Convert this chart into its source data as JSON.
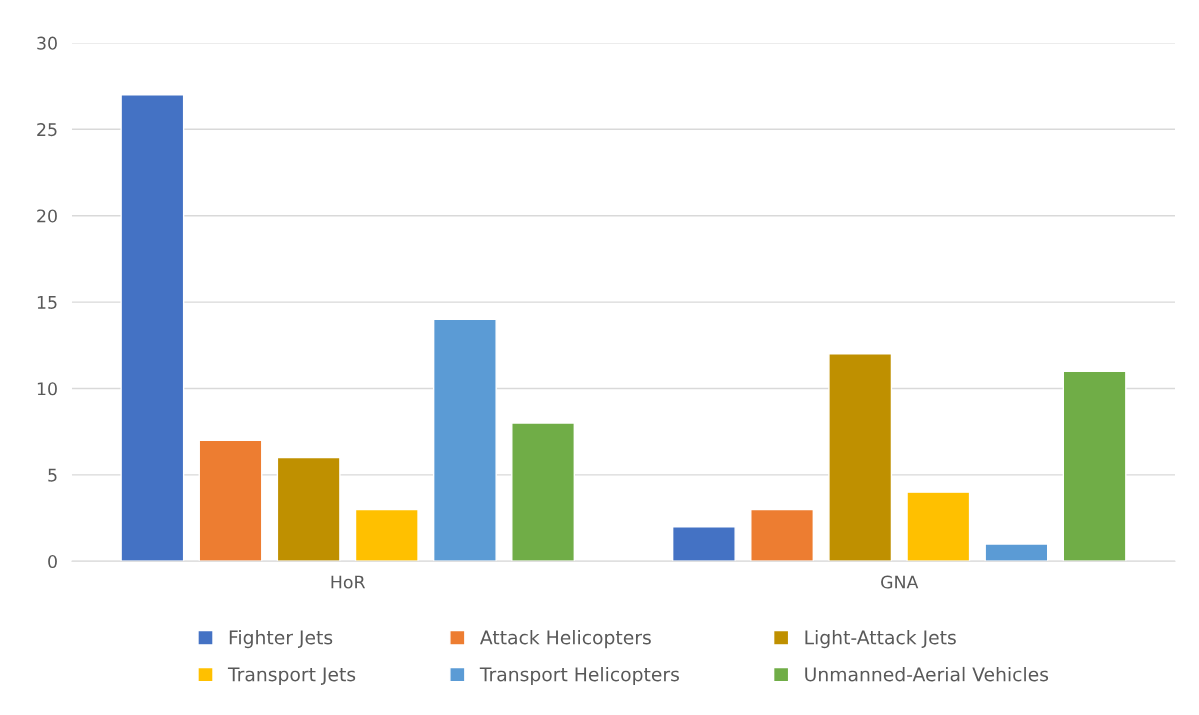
{
  "chart_data": {
    "type": "bar",
    "categories": [
      "HoR",
      "GNA"
    ],
    "series": [
      {
        "name": "Fighter Jets",
        "color": "#4472c4",
        "values": [
          27,
          2
        ]
      },
      {
        "name": "Attack Helicopters",
        "color": "#ed7d31",
        "values": [
          7,
          3
        ]
      },
      {
        "name": "Light-Attack Jets",
        "color": "#bf9000",
        "values": [
          6,
          12
        ]
      },
      {
        "name": "Transport Jets",
        "color": "#ffc000",
        "values": [
          3,
          4
        ]
      },
      {
        "name": "Transport Helicopters",
        "color": "#5b9bd5",
        "values": [
          14,
          1
        ]
      },
      {
        "name": "Unmanned-Aerial Vehicles",
        "color": "#70ad47",
        "values": [
          8,
          11
        ]
      }
    ],
    "ylim": [
      0,
      30
    ],
    "yticks": [
      0,
      5,
      10,
      15,
      20,
      25,
      30
    ],
    "grid": "y",
    "legend": "bottom"
  }
}
